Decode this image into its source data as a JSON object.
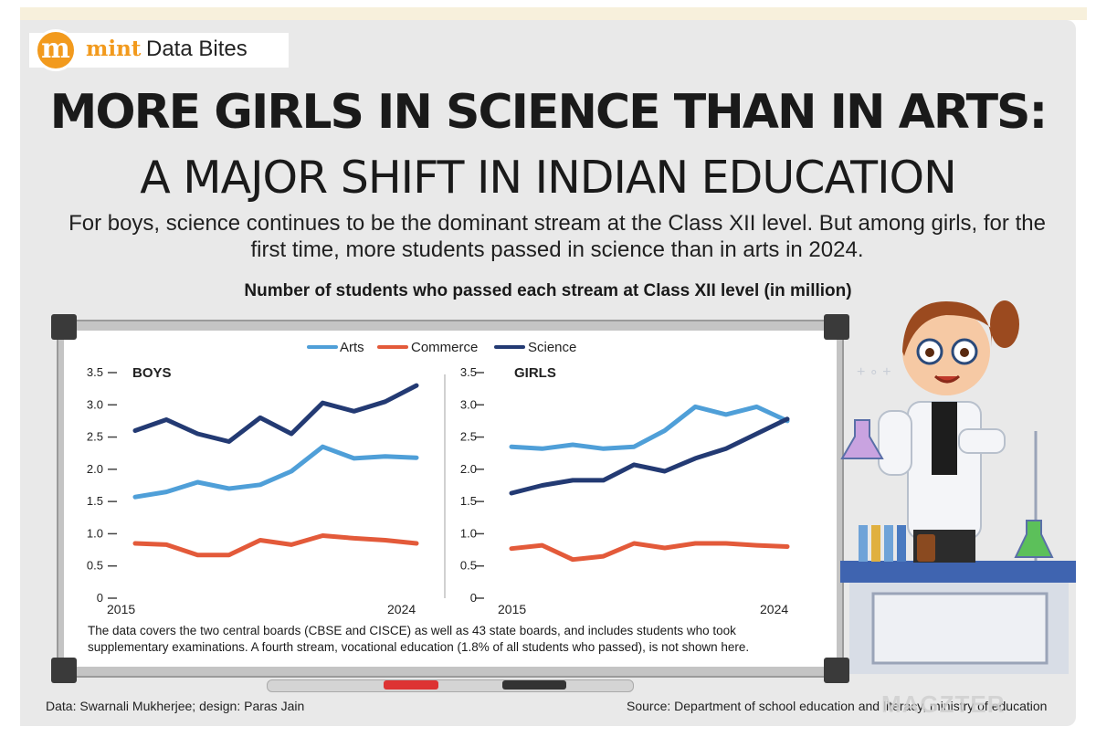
{
  "brand": {
    "logo_letter": "m",
    "name": "mint",
    "section": "Data Bites"
  },
  "headline": {
    "line1": "MORE GIRLS IN SCIENCE THAN IN ARTS:",
    "line2": "A MAJOR SHIFT IN INDIAN EDUCATION"
  },
  "deck": "For boys, science continues to be the dominant stream at the Class XII level. But among girls, for the first time, more students passed in science than in arts in 2024.",
  "chart_title": "Number of students who passed each stream at Class XII level (in million)",
  "note": "The data covers the two central boards (CBSE and CISCE) as well as 43 state boards, and includes students who took supplementary examinations. A fourth stream, vocational education (1.8% of all students who passed), is not shown here.",
  "credit": "Data: Swarnali Mukherjee; design: Paras Jain",
  "source": "Source: Department of school education and literacy, ministry of education",
  "watermark": "MAGZTER",
  "colors": {
    "arts": "#4f9fd8",
    "commerce": "#e35a3a",
    "science": "#233a73",
    "brand": "#f29a1d"
  },
  "chart_data": [
    {
      "type": "line",
      "title": "BOYS",
      "x": [
        2015,
        2016,
        2017,
        2018,
        2019,
        2020,
        2021,
        2022,
        2023,
        2024
      ],
      "x_tick_labels": [
        "2015",
        "2024"
      ],
      "ylim": [
        0,
        3.5
      ],
      "yticks": [
        "0",
        "0.5",
        "1.0",
        "1.5",
        "2.0",
        "2.5",
        "3.0",
        "3.5"
      ],
      "series": [
        {
          "name": "Arts",
          "values": [
            1.57,
            1.65,
            1.8,
            1.7,
            1.76,
            1.97,
            2.35,
            2.17,
            2.2,
            2.18
          ]
        },
        {
          "name": "Commerce",
          "values": [
            0.85,
            0.83,
            0.67,
            0.67,
            0.9,
            0.83,
            0.97,
            0.93,
            0.9,
            0.85
          ]
        },
        {
          "name": "Science",
          "values": [
            2.6,
            2.77,
            2.55,
            2.43,
            2.8,
            2.55,
            3.03,
            2.9,
            3.05,
            3.3
          ]
        }
      ]
    },
    {
      "type": "line",
      "title": "GIRLS",
      "x": [
        2015,
        2016,
        2017,
        2018,
        2019,
        2020,
        2021,
        2022,
        2023,
        2024
      ],
      "x_tick_labels": [
        "2015",
        "2024"
      ],
      "ylim": [
        0,
        3.5
      ],
      "yticks": [
        "0",
        "0.5",
        "1.0",
        "1.5",
        "2.0",
        "2.5",
        "3.0",
        "3.5"
      ],
      "series": [
        {
          "name": "Arts",
          "values": [
            2.35,
            2.32,
            2.38,
            2.32,
            2.35,
            2.6,
            2.97,
            2.85,
            2.97,
            2.75
          ]
        },
        {
          "name": "Commerce",
          "values": [
            0.77,
            0.82,
            0.6,
            0.65,
            0.85,
            0.78,
            0.85,
            0.85,
            0.82,
            0.8
          ]
        },
        {
          "name": "Science",
          "values": [
            1.63,
            1.75,
            1.83,
            1.83,
            2.07,
            1.97,
            2.17,
            2.32,
            2.55,
            2.78
          ]
        }
      ]
    }
  ],
  "legend": [
    "Arts",
    "Commerce",
    "Science"
  ]
}
